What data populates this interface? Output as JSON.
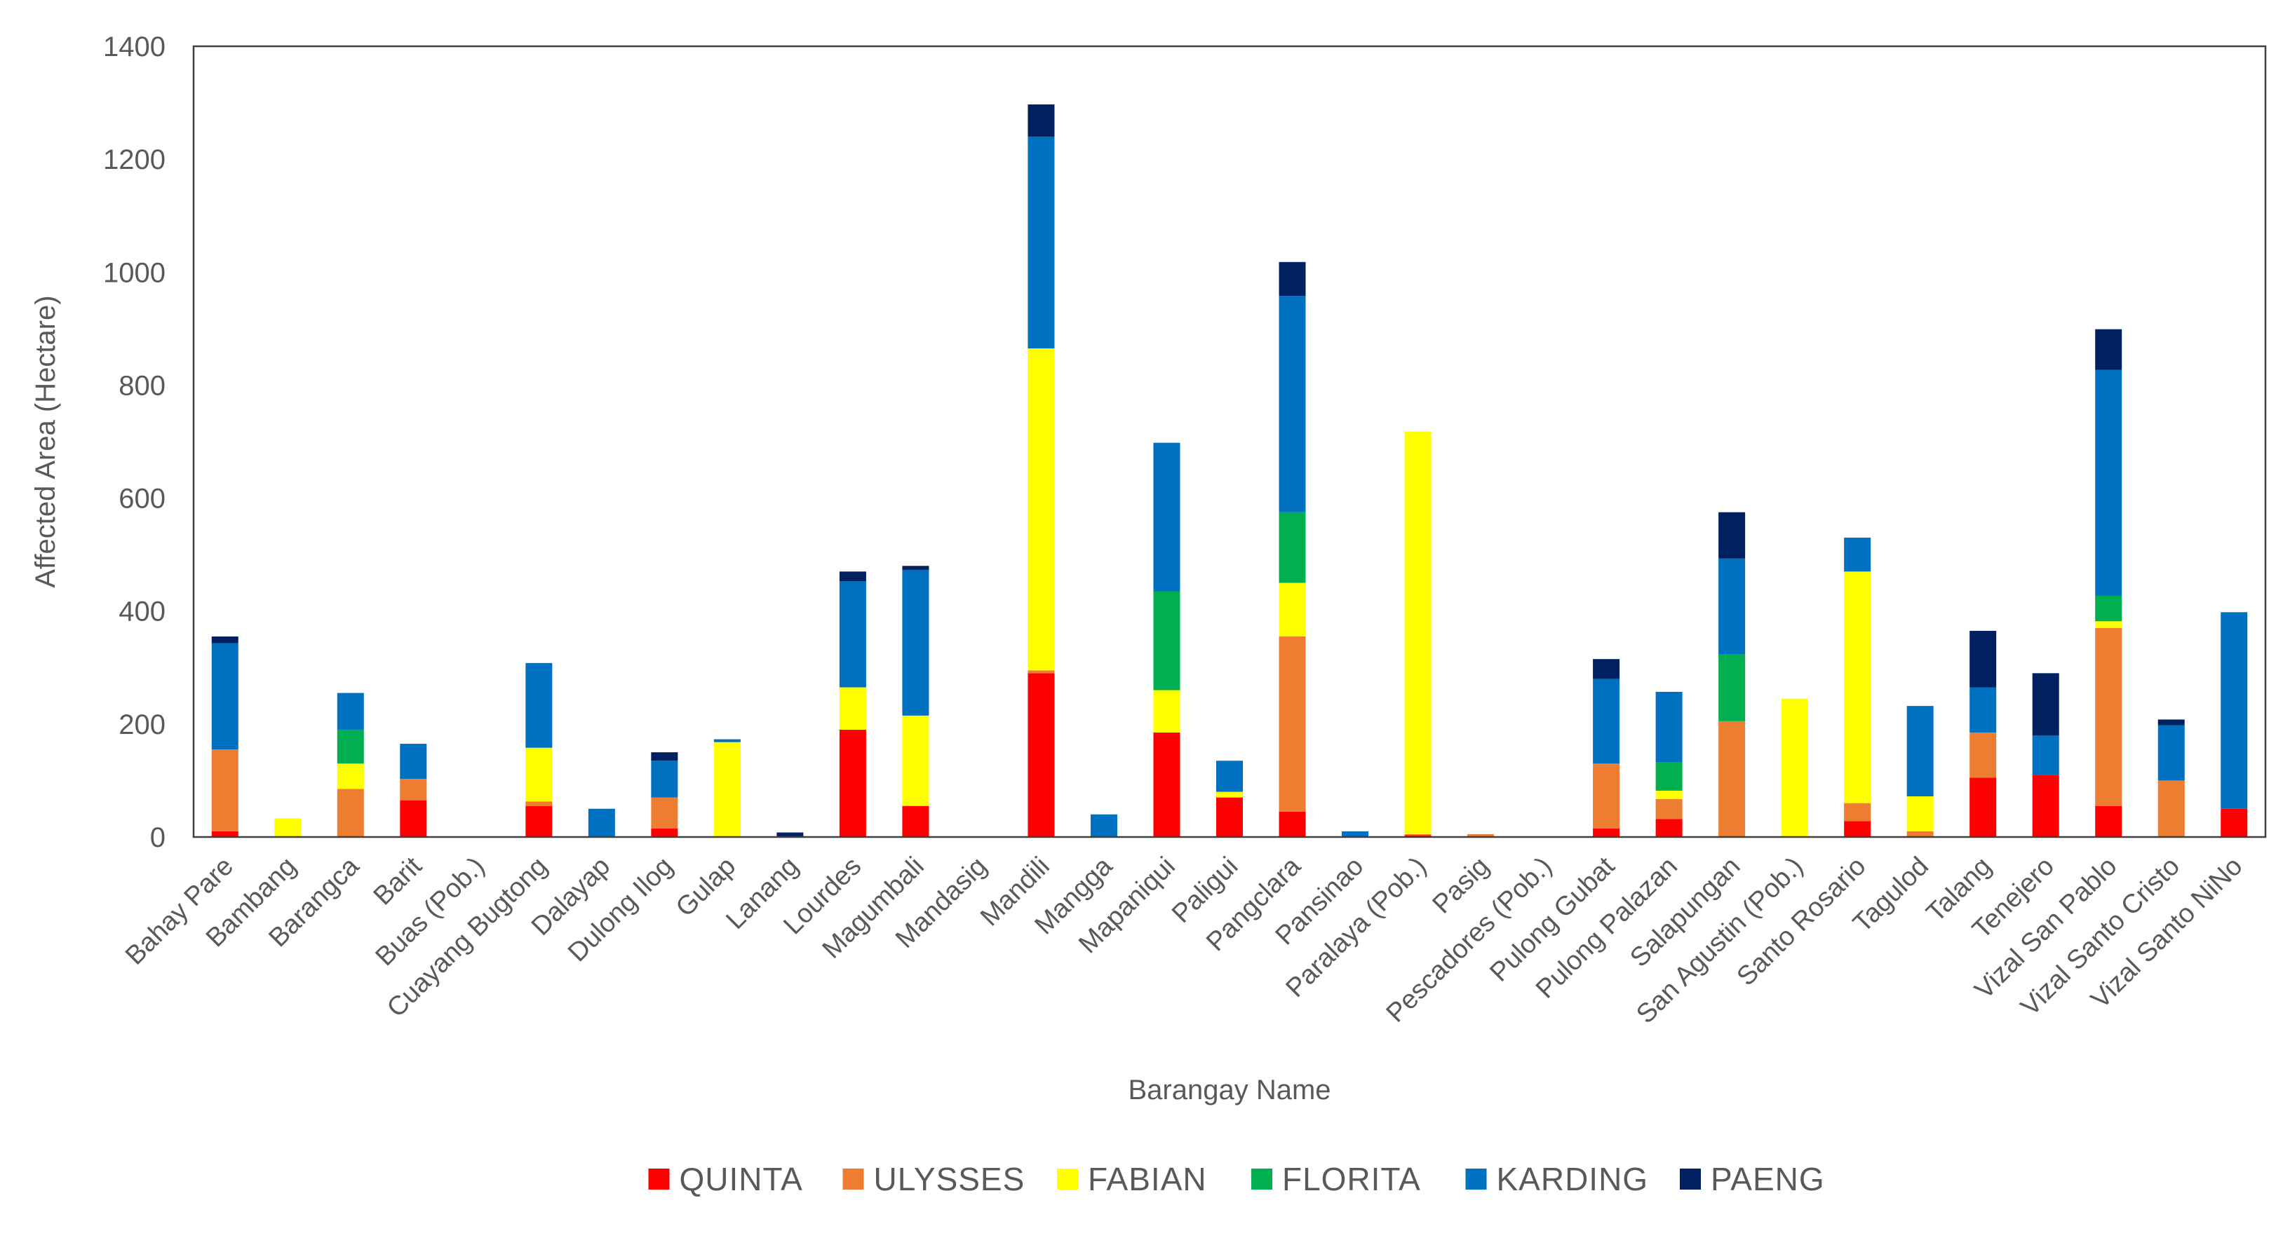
{
  "chart_data": {
    "type": "bar",
    "stacked": true,
    "title": "",
    "xlabel": "Barangay Name",
    "ylabel": "Affected Area (Hectare)",
    "ylim": [
      0,
      1400
    ],
    "yticks": [
      0,
      200,
      400,
      600,
      800,
      1000,
      1200,
      1400
    ],
    "grid": false,
    "legend": "bottom",
    "categories": [
      "Bahay Pare",
      "Bambang",
      "Barangca",
      "Barit",
      "Buas (Pob.)",
      "Cuayang Bugtong",
      "Dalayap",
      "Dulong Ilog",
      "Gulap",
      "Lanang",
      "Lourdes",
      "Magumbali",
      "Mandasig",
      "Mandili",
      "Mangga",
      "Mapaniqui",
      "Paligui",
      "Pangclara",
      "Pansinao",
      "Paralaya (Pob.)",
      "Pasig",
      "Pescadores (Pob.)",
      "Pulong Gubat",
      "Pulong Palazan",
      "Salapungan",
      "San Agustin (Pob.)",
      "Santo Rosario",
      "Tagulod",
      "Talang",
      "Tenejero",
      "Vizal San Pablo",
      "Vizal Santo Cristo",
      "Vizal Santo NiNo"
    ],
    "series": [
      {
        "name": "QUINTA",
        "color": "#FF0000",
        "values": [
          10,
          0,
          0,
          65,
          0,
          55,
          0,
          15,
          0,
          0,
          190,
          55,
          0,
          290,
          0,
          185,
          70,
          45,
          0,
          3,
          0,
          0,
          15,
          32,
          0,
          0,
          28,
          0,
          105,
          110,
          55,
          0,
          50
        ]
      },
      {
        "name": "ULYSSES",
        "color": "#ED7D31",
        "values": [
          145,
          0,
          85,
          38,
          0,
          8,
          0,
          55,
          0,
          0,
          0,
          0,
          0,
          5,
          0,
          0,
          0,
          310,
          0,
          2,
          5,
          0,
          115,
          35,
          205,
          0,
          32,
          10,
          80,
          0,
          315,
          100,
          0
        ]
      },
      {
        "name": "FABIAN",
        "color": "#FFFF00",
        "values": [
          0,
          33,
          45,
          0,
          0,
          95,
          0,
          0,
          168,
          0,
          75,
          160,
          0,
          570,
          0,
          75,
          10,
          95,
          0,
          713,
          0,
          0,
          0,
          15,
          0,
          245,
          410,
          62,
          0,
          0,
          12,
          0,
          0
        ]
      },
      {
        "name": "FLORITA",
        "color": "#00B050",
        "values": [
          0,
          0,
          60,
          0,
          0,
          0,
          0,
          0,
          0,
          0,
          0,
          0,
          0,
          0,
          0,
          175,
          0,
          125,
          0,
          0,
          0,
          0,
          0,
          50,
          118,
          0,
          0,
          0,
          0,
          0,
          45,
          0,
          0
        ]
      },
      {
        "name": "KARDING",
        "color": "#0070C0",
        "values": [
          188,
          0,
          65,
          62,
          0,
          150,
          50,
          65,
          5,
          0,
          188,
          258,
          0,
          375,
          40,
          263,
          55,
          383,
          10,
          0,
          0,
          0,
          150,
          125,
          170,
          0,
          60,
          160,
          80,
          70,
          400,
          98,
          348
        ]
      },
      {
        "name": "PAENG",
        "color": "#002060",
        "values": [
          12,
          0,
          0,
          0,
          0,
          0,
          0,
          15,
          0,
          8,
          17,
          7,
          0,
          57,
          0,
          0,
          0,
          60,
          0,
          0,
          0,
          0,
          35,
          0,
          82,
          0,
          0,
          0,
          100,
          110,
          72,
          10,
          0
        ]
      }
    ]
  }
}
